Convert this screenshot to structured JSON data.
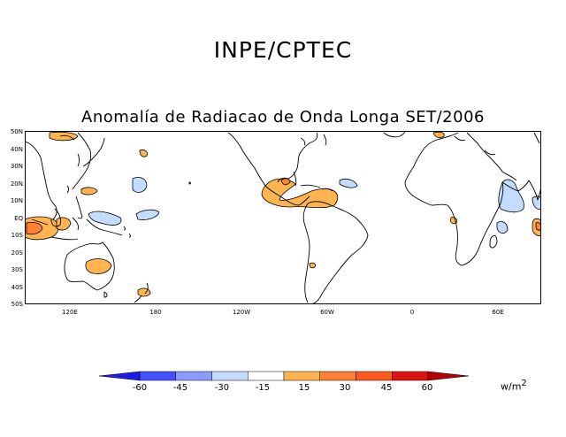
{
  "header": {
    "organization": "INPE/CPTEC"
  },
  "map": {
    "title": "Anomalía de Radiacao de Onda Longa SET/2006",
    "lat_labels": [
      "50N",
      "40N",
      "30N",
      "20N",
      "10N",
      "EQ",
      "10S",
      "20S",
      "30S",
      "40S",
      "50S"
    ],
    "lon_labels": [
      "120E",
      "180",
      "120W",
      "60W",
      "0",
      "60E"
    ]
  },
  "colorbar": {
    "labels": [
      "-60",
      "-45",
      "-30",
      "-15",
      "15",
      "30",
      "45",
      "60"
    ],
    "colors": [
      "#1e1ee6",
      "#4650ff",
      "#8c9bff",
      "#c3dcff",
      "#ffffff",
      "#ffb450",
      "#ff8232",
      "#ff5a1e",
      "#dc1414",
      "#b40000"
    ],
    "units": "w/m",
    "units_exp": "2"
  }
}
